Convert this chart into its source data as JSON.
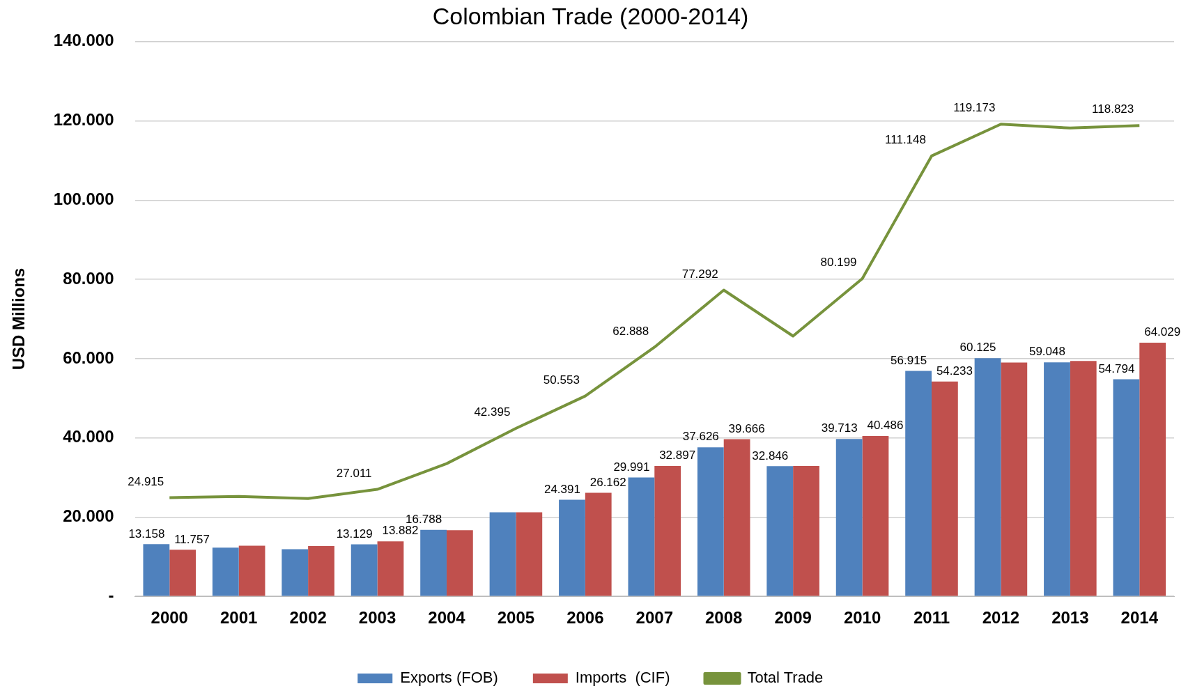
{
  "chart_data": {
    "type": "bar",
    "title": "Colombian Trade (2000-2014)",
    "ylabel": "USD Millions",
    "categories": [
      "2000",
      "2001",
      "2002",
      "2003",
      "2004",
      "2005",
      "2006",
      "2007",
      "2008",
      "2009",
      "2010",
      "2011",
      "2012",
      "2013",
      "2014"
    ],
    "series": [
      {
        "name": "Exports (FOB)",
        "color": "#4f81bd",
        "values": [
          13158,
          12300,
          11900,
          13129,
          16788,
          21200,
          24391,
          29991,
          37626,
          32846,
          39713,
          56915,
          60125,
          59048,
          54794
        ],
        "value_labels": [
          "13.158",
          null,
          null,
          "13.129",
          "16.788",
          null,
          "24.391",
          "29.991",
          "37.626",
          "32.846",
          "39.713",
          "56.915",
          "60.125",
          "59.048",
          "54.794"
        ]
      },
      {
        "name": "Imports  (CIF)",
        "color": "#c0504d",
        "values": [
          11757,
          12800,
          12700,
          13882,
          16700,
          21200,
          26162,
          32897,
          39666,
          32900,
          40486,
          54233,
          59000,
          59400,
          64029
        ],
        "value_labels": [
          "11.757",
          null,
          null,
          "13.882",
          null,
          null,
          "26.162",
          "32.897",
          "39.666",
          null,
          "40.486",
          "54.233",
          null,
          null,
          "64.029"
        ]
      },
      {
        "name": "Total Trade",
        "type": "line",
        "color": "#77933c",
        "values": [
          24915,
          25200,
          24700,
          27011,
          33500,
          42395,
          50553,
          62888,
          77292,
          65700,
          80199,
          111148,
          119173,
          118200,
          118823
        ],
        "value_labels": [
          "24.915",
          null,
          null,
          "27.011",
          null,
          "42.395",
          "50.553",
          "62.888",
          "77.292",
          null,
          "80.199",
          "111.148",
          "119.173",
          null,
          "118.823"
        ]
      }
    ],
    "ylim": [
      0,
      140000
    ],
    "yticks": [
      {
        "value": 0,
        "label": "-"
      },
      {
        "value": 20000,
        "label": "20.000"
      },
      {
        "value": 40000,
        "label": "40.000"
      },
      {
        "value": 60000,
        "label": "60.000"
      },
      {
        "value": 80000,
        "label": "80.000"
      },
      {
        "value": 100000,
        "label": "100.000"
      },
      {
        "value": 120000,
        "label": "120.000"
      },
      {
        "value": 140000,
        "label": "140.000"
      }
    ],
    "grid": "y",
    "legend": "bottom",
    "marker": "none"
  }
}
